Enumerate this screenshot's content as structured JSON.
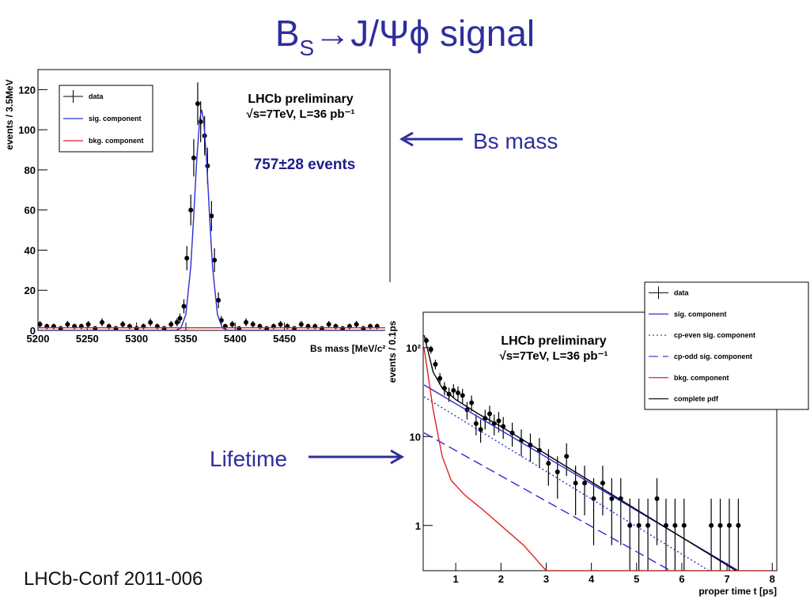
{
  "slide": {
    "title": {
      "parts": [
        "B",
        "S",
        "→J/Ψϕ signal"
      ]
    },
    "arrow_label_mass": "Bs mass",
    "arrow_label_lifetime": "Lifetime",
    "footer": "LHCb-Conf 2011-006"
  },
  "chart_data": [
    {
      "type": "errorbar",
      "ylog": false,
      "ylabel": "events / 3.5MeV",
      "xlabel": "Bs mass [MeV/c²]",
      "annotations": [
        "LHCb preliminary",
        "√s=7TeV, L=36 pb⁻¹",
        "757±28 events"
      ],
      "xlim": [
        5200,
        5557
      ],
      "xticks": [
        5200,
        5250,
        5300,
        5350,
        5400,
        5450
      ],
      "ylim": [
        0,
        130
      ],
      "yticks": [
        0,
        20,
        40,
        60,
        80,
        100,
        120
      ],
      "series": [
        {
          "name": "data",
          "color": "#000000",
          "x": [
            5202,
            5209,
            5216,
            5223,
            5230,
            5237,
            5244,
            5251,
            5258,
            5265,
            5272,
            5279,
            5286,
            5293,
            5300,
            5307,
            5314,
            5321,
            5328,
            5335,
            5341,
            5344,
            5348,
            5351,
            5355,
            5358,
            5362,
            5365,
            5369,
            5372,
            5376,
            5379,
            5383,
            5386,
            5390,
            5397,
            5404,
            5411,
            5418,
            5425,
            5432,
            5439,
            5446,
            5453,
            5460,
            5467,
            5474,
            5481,
            5488,
            5495,
            5502,
            5509,
            5516,
            5523,
            5530,
            5537,
            5544
          ],
          "values": [
            3,
            2,
            2,
            1,
            3,
            2,
            2,
            3,
            1,
            4,
            2,
            1,
            3,
            2,
            1,
            2,
            4,
            2,
            1,
            3,
            4,
            6,
            12,
            36,
            60,
            86,
            113,
            104,
            97,
            82,
            57,
            35,
            15,
            5,
            2,
            3,
            1,
            4,
            3,
            2,
            1,
            2,
            3,
            2,
            1,
            3,
            2,
            2,
            1,
            3,
            2,
            1,
            2,
            3,
            1,
            2,
            2
          ],
          "errors": [
            1.7,
            1.4,
            1.4,
            1,
            1.7,
            1.4,
            1.4,
            1.7,
            1,
            2,
            1.4,
            1,
            1.7,
            1.4,
            1,
            1.4,
            2,
            1.4,
            1,
            1.7,
            2,
            2.4,
            3.5,
            6,
            7.7,
            9.3,
            10.6,
            10.2,
            9.8,
            9.1,
            7.5,
            5.9,
            3.9,
            2.2,
            1.4,
            1.7,
            1,
            2,
            1.7,
            1.4,
            1,
            1.4,
            1.7,
            1.4,
            1,
            1.7,
            1.4,
            1.4,
            1,
            1.7,
            1.4,
            1,
            1.4,
            1.7,
            1,
            1.4,
            1.4
          ]
        },
        {
          "name": "sig. component",
          "color": "#2b2bd6",
          "dash": "solid",
          "x": [
            5200,
            5340,
            5345,
            5350,
            5355,
            5358,
            5361,
            5364,
            5366,
            5368,
            5371,
            5374,
            5377,
            5382,
            5387,
            5392,
            5557
          ],
          "values": [
            0,
            0.1,
            1.2,
            8,
            32,
            57,
            85,
            105,
            110,
            105,
            85,
            57,
            32,
            8,
            1.2,
            0.1,
            0
          ]
        },
        {
          "name": "bkg. component",
          "color": "#e02020",
          "dash": "solid",
          "x": [
            5200,
            5557
          ],
          "values": [
            1.3,
            1.3
          ]
        }
      ]
    },
    {
      "type": "errorbar",
      "ylog": true,
      "ylabel": "events / 0.1ps",
      "xlabel": "proper time t [ps]",
      "annotations": [
        "LHCb preliminary",
        "√s=7TeV, L=36 pb⁻¹"
      ],
      "xlim": [
        0.28,
        8.1
      ],
      "xticks": [
        1,
        2,
        3,
        4,
        5,
        6,
        7,
        8
      ],
      "ylim": [
        0.31,
        250
      ],
      "yticks": [
        1,
        10,
        {
          "value": 100,
          "label": "10²"
        }
      ],
      "series": [
        {
          "name": "data",
          "color": "#000000",
          "x": [
            0.35,
            0.45,
            0.55,
            0.65,
            0.75,
            0.85,
            0.95,
            1.05,
            1.15,
            1.25,
            1.35,
            1.45,
            1.55,
            1.65,
            1.75,
            1.85,
            1.95,
            2.05,
            2.25,
            2.45,
            2.65,
            2.85,
            3.05,
            3.25,
            3.45,
            3.65,
            3.85,
            4.05,
            4.25,
            4.45,
            4.65,
            4.85,
            5.05,
            5.25,
            5.45,
            5.65,
            5.85,
            6.05,
            6.65,
            6.85,
            7.05,
            7.25
          ],
          "values": [
            120,
            95,
            65,
            45,
            35,
            30,
            33,
            31,
            29,
            20,
            24,
            14,
            12,
            16,
            18,
            14,
            15,
            13,
            11,
            9,
            8,
            7,
            5,
            4,
            6,
            3,
            3,
            2,
            3,
            2,
            2,
            1,
            1,
            1,
            2,
            1,
            1,
            1,
            1,
            1,
            1,
            1
          ],
          "errors": [
            11,
            9.7,
            8.1,
            6.7,
            5.9,
            5.5,
            5.7,
            5.6,
            5.4,
            4.5,
            4.9,
            3.7,
            3.5,
            4,
            4.2,
            3.7,
            3.9,
            3.6,
            3.3,
            3,
            2.8,
            2.6,
            2.2,
            2,
            2.4,
            1.7,
            1.7,
            1.4,
            1.7,
            1.4,
            1.4,
            1,
            1,
            1,
            1.4,
            1,
            1,
            1,
            1,
            1,
            1,
            1
          ]
        },
        {
          "name": "sig. component",
          "color": "#2b2bd6",
          "dash": "solid",
          "x": [
            0.3,
            7.25
          ],
          "values": [
            38,
            0.31
          ]
        },
        {
          "name": "cp-even sig. component",
          "color": "#2b2bd6",
          "dash": "dotted",
          "x": [
            0.3,
            6.6
          ],
          "values": [
            28,
            0.31
          ]
        },
        {
          "name": "cp-odd sig. component",
          "color": "#2b2bd6",
          "dash": "dashed",
          "x": [
            0.3,
            5.75
          ],
          "values": [
            11,
            0.31
          ]
        },
        {
          "name": "bkg. component",
          "color": "#e02020",
          "dash": "solid",
          "x": [
            0.3,
            0.5,
            0.7,
            0.9,
            1.2,
            1.6,
            2.0,
            2.5,
            3.0,
            8.0
          ],
          "values": [
            100,
            20,
            6,
            3.2,
            2.2,
            1.5,
            1,
            0.6,
            0.31,
            0.31
          ]
        },
        {
          "name": "complete pdf",
          "color": "#000000",
          "dash": "solid",
          "x": [
            0.3,
            0.5,
            0.7,
            1.0,
            1.5,
            2.0,
            7.2
          ],
          "values": [
            138,
            53,
            35,
            26,
            18,
            13,
            0.31
          ]
        }
      ]
    }
  ]
}
